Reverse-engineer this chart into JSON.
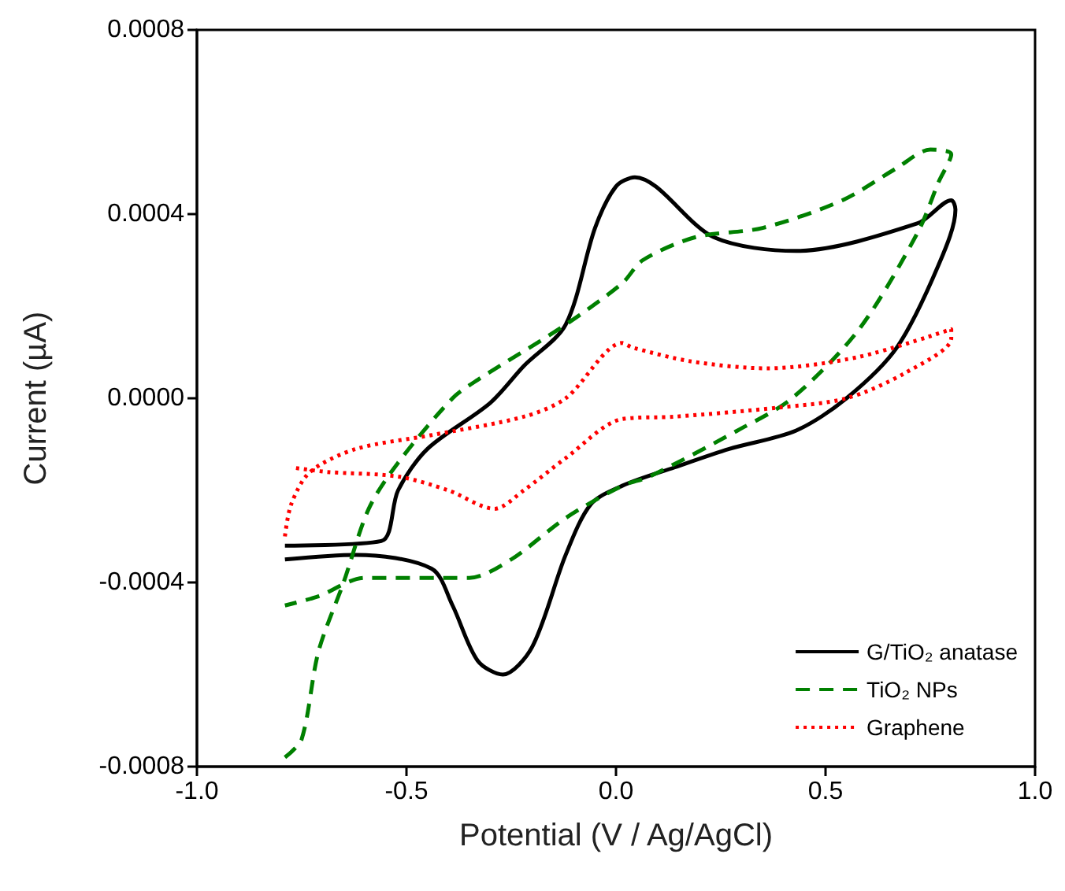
{
  "chart_data": {
    "type": "line",
    "xlabel": "Potential (V / Ag/AgCl)",
    "ylabel": "Current (µA)",
    "xlim": [
      -1.0,
      1.0
    ],
    "xticks": [
      {
        "value": -1.0,
        "label": "-1.0"
      },
      {
        "value": -0.5,
        "label": "-0.5"
      },
      {
        "value": 0,
        "label": "0.0"
      },
      {
        "value": 0.5,
        "label": "0.5"
      },
      {
        "value": 1.0,
        "label": "1.0"
      }
    ],
    "ylim": [
      -0.0008,
      0.0008
    ],
    "yticks": [
      {
        "value": -0.0008,
        "label": "-0.0008"
      },
      {
        "value": -0.0004,
        "label": "-0.0004"
      },
      {
        "value": 0,
        "label": "0.0000"
      },
      {
        "value": 0.0004,
        "label": "0.0004"
      },
      {
        "value": 0.0008,
        "label": "0.0008"
      }
    ],
    "grid": false,
    "legend": "bottom right",
    "marker": "none",
    "series": [
      {
        "name": "G/TiO₂ anatase",
        "color": "#000000",
        "line_style": "solid",
        "x": [
          -0.79,
          -0.56,
          -0.52,
          -0.45,
          -0.3,
          -0.22,
          -0.12,
          -0.05,
          0.0,
          0.045,
          0.233,
          0.43,
          0.72,
          0.8,
          0.81,
          0.77,
          0.67,
          0.55,
          0.43,
          0.27,
          0.14,
          0.015,
          -0.06,
          -0.12,
          -0.2,
          -0.27,
          -0.33,
          -0.39,
          -0.44,
          -0.62,
          -0.79
        ],
        "values": [
          -0.00032,
          -0.00031,
          -0.0002,
          -0.00011,
          -1e-05,
          7e-05,
          0.00016,
          0.00037,
          0.00046,
          0.00048,
          0.00035,
          0.00032,
          0.00038,
          0.00043,
          0.00041,
          0.00029,
          0.00011,
          0.0,
          -7e-05,
          -0.00011,
          -0.00015,
          -0.00019,
          -0.00023,
          -0.00034,
          -0.00054,
          -0.0006,
          -0.00057,
          -0.00045,
          -0.00037,
          -0.00034,
          -0.00035
        ]
      },
      {
        "name": "TiO₂ NPs",
        "color": "#008000",
        "line_style": "dashed",
        "x": [
          -0.79,
          -0.75,
          -0.71,
          -0.65,
          -0.59,
          -0.52,
          -0.39,
          -0.33,
          -0.12,
          0.015,
          0.064,
          0.19,
          0.35,
          0.54,
          0.67,
          0.75,
          0.8,
          0.77,
          0.72,
          0.58,
          0.42,
          0.29,
          0.08,
          0.015,
          -0.12,
          -0.25,
          -0.35,
          -0.6,
          -0.71,
          -0.79
        ],
        "values": [
          -0.00078,
          -0.00074,
          -0.00055,
          -0.0004,
          -0.00024,
          -0.00014,
          0.0,
          4e-05,
          0.00016,
          0.00025,
          0.0003,
          0.00035,
          0.00037,
          0.00043,
          0.0005,
          0.00054,
          0.00053,
          0.00047,
          0.00036,
          0.00015,
          0.0,
          -7e-05,
          -0.00017,
          -0.00019,
          -0.00026,
          -0.00035,
          -0.00039,
          -0.00039,
          -0.00043,
          -0.00045
        ]
      },
      {
        "name": "Graphene",
        "color": "#ff0000",
        "line_style": "dotted",
        "x": [
          -0.79,
          -0.775,
          -0.73,
          -0.62,
          -0.44,
          -0.22,
          -0.12,
          0.015,
          0.04,
          0.18,
          0.36,
          0.58,
          0.8,
          0.8,
          0.69,
          0.55,
          0.39,
          0.14,
          0.015,
          -0.12,
          -0.22,
          -0.29,
          -0.4,
          -0.52,
          -0.69,
          -0.775
        ],
        "values": [
          -0.0003,
          -0.00023,
          -0.00016,
          -0.00011,
          -8e-05,
          -4e-05,
          0.0,
          0.00012,
          0.00011,
          8e-05,
          6.5e-05,
          9e-05,
          0.00015,
          0.00013,
          5.5e-05,
          0.0,
          -2e-05,
          -4e-05,
          -4.5e-05,
          -0.00013,
          -0.0002,
          -0.00024,
          -0.0002,
          -0.00017,
          -0.00016,
          -0.00015
        ]
      }
    ]
  }
}
